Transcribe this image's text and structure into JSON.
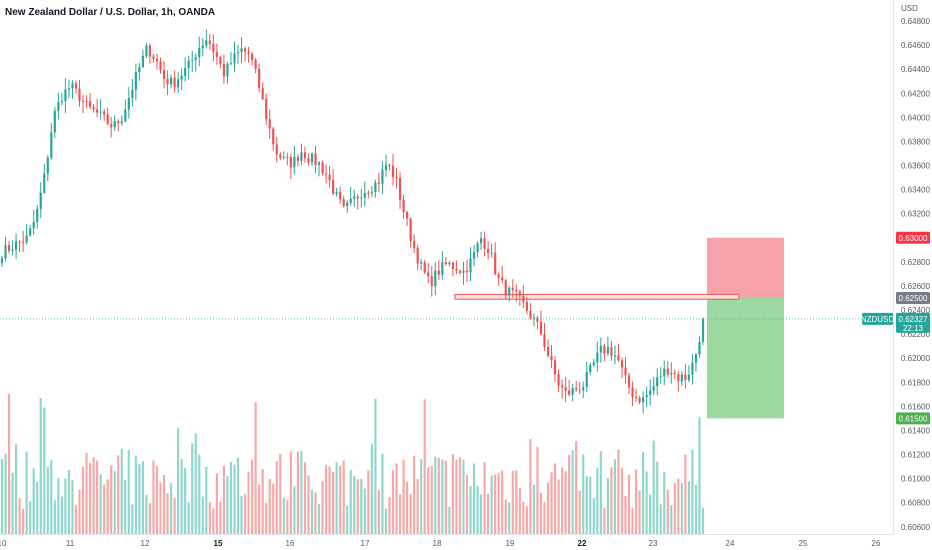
{
  "chart_data": {
    "type": "candlestick",
    "title": "New Zealand Dollar / U.S. Dollar, 1h, OANDA",
    "y_unit_label": "USD",
    "ylim": [
      0.6054,
      0.649
    ],
    "y_ticks": [
      "0.64800",
      "0.64600",
      "0.64400",
      "0.64200",
      "0.64000",
      "0.63800",
      "0.63600",
      "0.63400",
      "0.63200",
      "0.62800",
      "0.62600",
      "0.62400",
      "0.62200",
      "0.62000",
      "0.61800",
      "0.61600",
      "0.61400",
      "0.61200",
      "0.61000",
      "0.60800",
      "0.60600"
    ],
    "x_ticks": [
      {
        "label": "10",
        "bold": false
      },
      {
        "label": "11",
        "bold": false
      },
      {
        "label": "12",
        "bold": false
      },
      {
        "label": "15",
        "bold": true
      },
      {
        "label": "16",
        "bold": false
      },
      {
        "label": "17",
        "bold": false
      },
      {
        "label": "18",
        "bold": false
      },
      {
        "label": "19",
        "bold": false
      },
      {
        "label": "22",
        "bold": true
      },
      {
        "label": "23",
        "bold": false
      },
      {
        "label": "24",
        "bold": false
      },
      {
        "label": "25",
        "bold": false
      },
      {
        "label": "26",
        "bold": false
      }
    ],
    "price_path": [
      0.6288,
      0.6292,
      0.6296,
      0.63,
      0.6318,
      0.6352,
      0.64,
      0.6418,
      0.6426,
      0.6418,
      0.6408,
      0.6404,
      0.6398,
      0.6392,
      0.64,
      0.642,
      0.644,
      0.6458,
      0.6448,
      0.6432,
      0.6428,
      0.6436,
      0.6444,
      0.6458,
      0.6466,
      0.6452,
      0.6436,
      0.6448,
      0.6456,
      0.6452,
      0.6428,
      0.6398,
      0.6372,
      0.6364,
      0.6362,
      0.6372,
      0.6366,
      0.6362,
      0.6352,
      0.6336,
      0.6322,
      0.633,
      0.6338,
      0.6342,
      0.6346,
      0.6362,
      0.635,
      0.6322,
      0.6296,
      0.6276,
      0.6262,
      0.6272,
      0.6278,
      0.6276,
      0.6272,
      0.6282,
      0.63,
      0.629,
      0.6266,
      0.6256,
      0.6252,
      0.6244,
      0.6234,
      0.6222,
      0.62,
      0.618,
      0.617,
      0.6174,
      0.6178,
      0.6192,
      0.6206,
      0.6208,
      0.62,
      0.618,
      0.6168,
      0.6166,
      0.6174,
      0.6186,
      0.6192,
      0.6184,
      0.6184,
      0.6198,
      0.6232
    ],
    "candle_count": 200,
    "current_price": {
      "symbol": "NZDUSD",
      "price": "0.62327",
      "countdown": "22:13",
      "value": 0.62327
    },
    "position": {
      "type": "short",
      "entry": 0.625,
      "stop_loss": 0.63,
      "take_profit": 0.615,
      "entry_label": "0.62500",
      "stop_label": "0.63000",
      "target_label": "0.61500"
    },
    "zone": {
      "low": 0.6249,
      "high": 0.6253
    },
    "colors": {
      "up": "#26a69a",
      "down": "#ef5350",
      "vol_up": "#8fd6cd",
      "vol_down": "#f7a7a5",
      "stop_zone": "#f7a1a8",
      "target_zone": "#9cd8a0",
      "stop_badge": "#f23645",
      "target_badge": "#4caf50",
      "entry_badge": "#787b86",
      "current_badge": "#26a69a",
      "zone_stroke": "#ef5350"
    }
  }
}
